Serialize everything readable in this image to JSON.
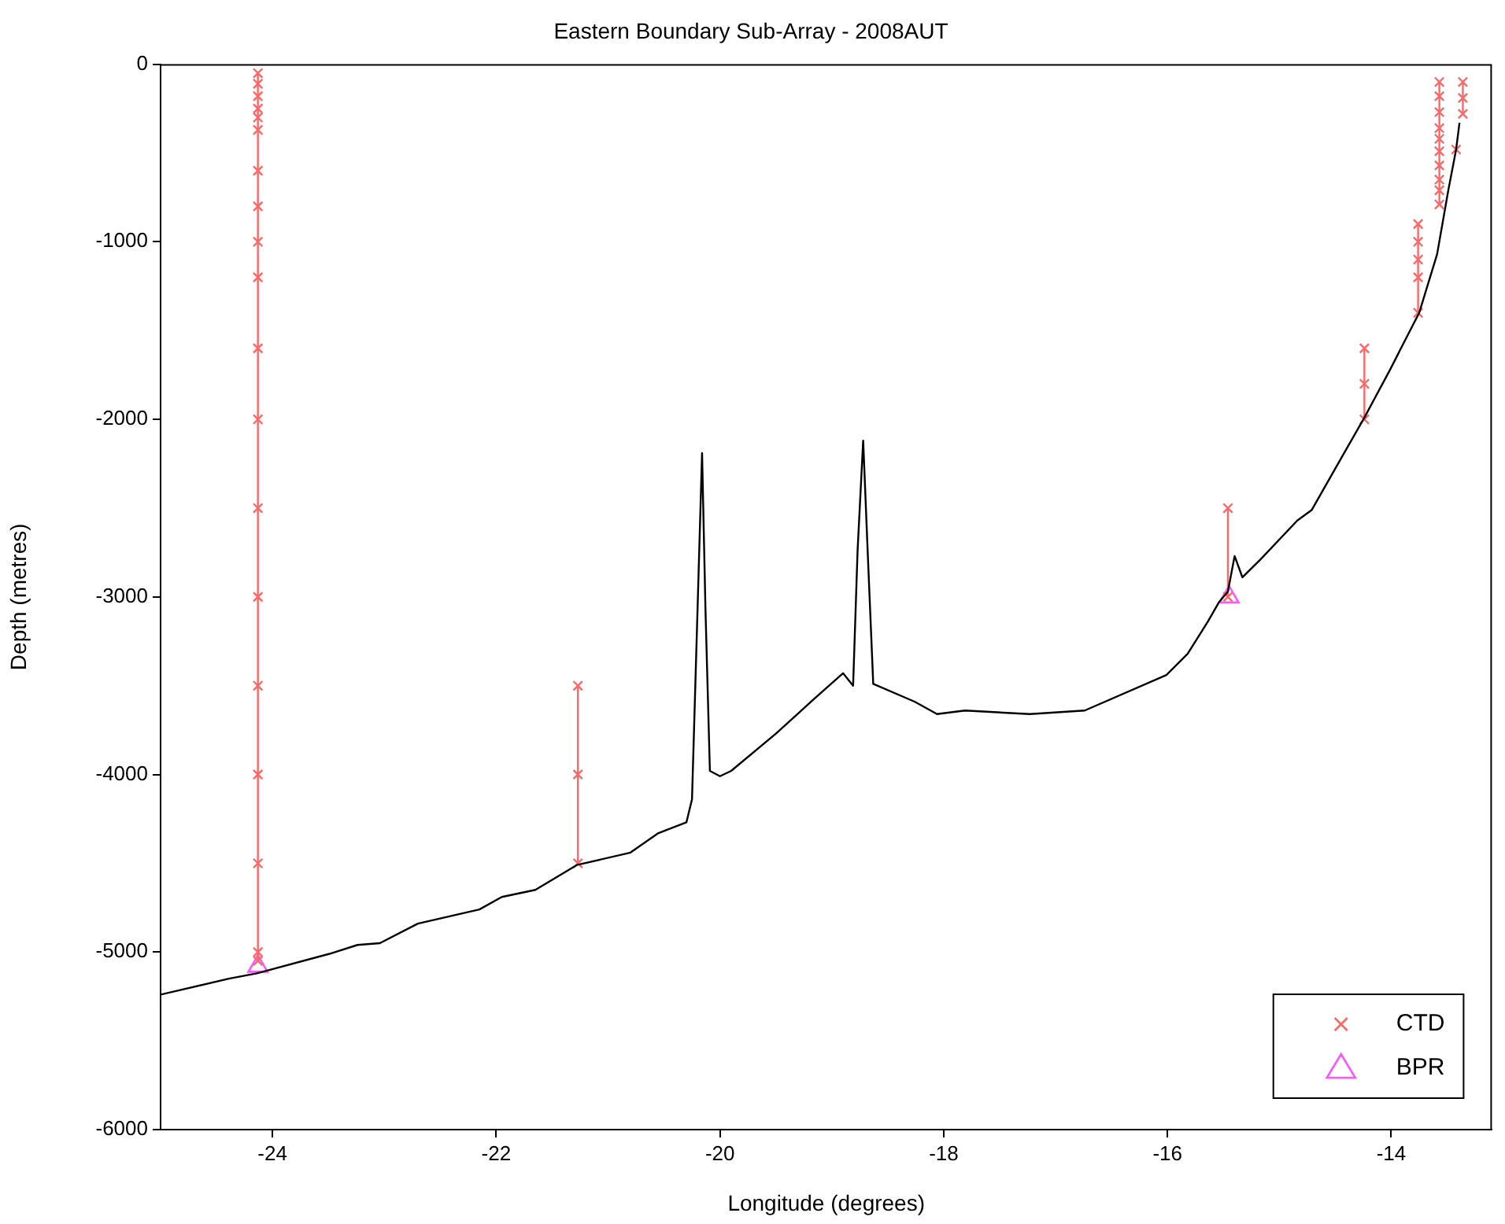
{
  "chart_data": {
    "type": "line",
    "title": "Eastern Boundary Sub-Array - 2008AUT",
    "xlabel": "Longitude (degrees)",
    "ylabel": "Depth (metres)",
    "xlim": [
      -25,
      -13.1
    ],
    "xticks": [
      -24,
      -22,
      -20,
      -18,
      -16,
      -14
    ],
    "ylim": [
      -6000,
      0
    ],
    "yticks": [
      -6000,
      -5000,
      -4000,
      -3000,
      -2000,
      -1000,
      0
    ],
    "grid": false,
    "legend": "bottom right",
    "series": [
      {
        "color": "#000000",
        "marker": "none",
        "x": [
          -25.0,
          -24.39,
          -24.14,
          -23.49,
          -23.24,
          -23.04,
          -22.7,
          -22.15,
          -21.95,
          -21.65,
          -21.28,
          -20.8,
          -20.55,
          -20.3,
          -20.25,
          -20.2,
          -20.16,
          -20.13,
          -20.09,
          -20.0,
          -19.9,
          -19.5,
          -19.15,
          -18.9,
          -18.81,
          -18.77,
          -18.72,
          -18.68,
          -18.63,
          -18.26,
          -18.06,
          -17.81,
          -17.23,
          -16.74,
          -16.01,
          -15.82,
          -15.64,
          -15.54,
          -15.46,
          -15.4,
          -15.33,
          -15.17,
          -14.84,
          -14.71,
          -14.43,
          -14.24,
          -14.01,
          -13.84,
          -13.75,
          -13.59,
          -13.49,
          -13.42,
          -13.39
        ],
        "values": [
          -5240,
          -5150,
          -5120,
          -5010,
          -4960,
          -4950,
          -4840,
          -4760,
          -4690,
          -4650,
          -4510,
          -4440,
          -4330,
          -4270,
          -4140,
          -3060,
          -2190,
          -3060,
          -3980,
          -4010,
          -3980,
          -3770,
          -3570,
          -3430,
          -3500,
          -2740,
          -2120,
          -2740,
          -3490,
          -3590,
          -3660,
          -3640,
          -3660,
          -3640,
          -3440,
          -3320,
          -3140,
          -3030,
          -2970,
          -2770,
          -2890,
          -2790,
          -2570,
          -2510,
          -2200,
          -1990,
          -1720,
          -1510,
          -1400,
          -1070,
          -710,
          -480,
          -330
        ]
      },
      {
        "name": "CTD",
        "color": "#ff6666",
        "marker": "cross",
        "x": [
          -24.13,
          -24.13,
          -24.13,
          -24.13,
          -24.13,
          -24.13,
          -24.13,
          -24.13,
          -24.13,
          -24.13,
          -24.13,
          -24.13,
          -24.13,
          -24.13,
          -24.13,
          -24.13,
          -24.13,
          -24.13,
          -24.13,
          null,
          -21.27,
          -21.27,
          -21.27,
          null,
          -15.46,
          -15.46,
          null,
          -14.24,
          -14.24,
          -14.24,
          null,
          -13.76,
          -13.76,
          -13.76,
          -13.76,
          -13.76,
          null,
          -13.57,
          -13.57,
          -13.57,
          -13.57,
          -13.57,
          -13.57,
          -13.57,
          -13.57,
          -13.57,
          -13.57,
          null,
          -13.36,
          -13.36,
          -13.36,
          null,
          -13.42
        ],
        "values": [
          -50,
          -110,
          -180,
          -250,
          -300,
          -370,
          -600,
          -800,
          -1000,
          -1200,
          -1600,
          -2000,
          -2500,
          -3000,
          -3500,
          -4000,
          -4500,
          -5000,
          -5050,
          null,
          -3500,
          -4000,
          -4500,
          null,
          -2500,
          -3000,
          null,
          -1600,
          -1800,
          -2000,
          null,
          -900,
          -1000,
          -1100,
          -1200,
          -1400,
          null,
          -100,
          -180,
          -270,
          -360,
          -420,
          -490,
          -570,
          -650,
          -710,
          -790,
          null,
          -100,
          -190,
          -280,
          null,
          -480
        ]
      },
      {
        "type": "scatter",
        "name": "BPR",
        "color": "#ff55ff",
        "marker": "triangle",
        "x": [
          -24.13,
          -15.45
        ],
        "values": [
          -5080,
          -3000
        ]
      }
    ]
  }
}
